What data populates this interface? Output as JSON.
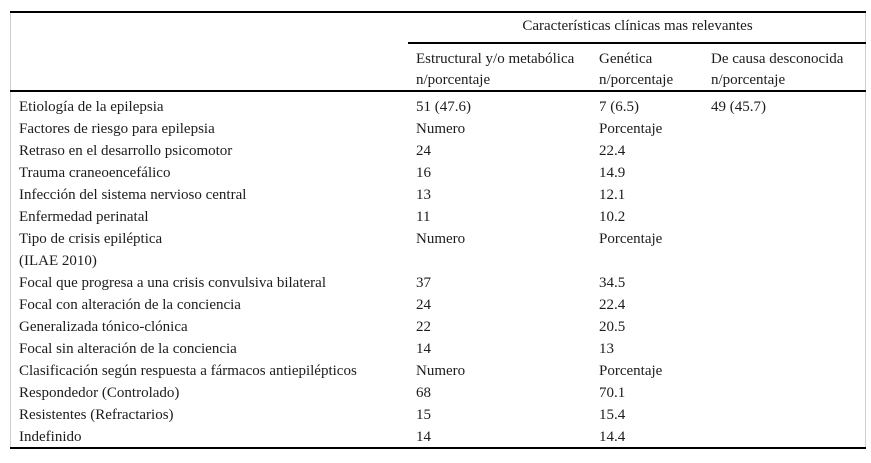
{
  "colors": {
    "rule": "#000000",
    "text": "#1c1c1c",
    "frame": "#cfcfcf",
    "background": "#ffffff"
  },
  "table": {
    "spanner_title": "Características clínicas mas relevantes",
    "columns": [
      {
        "line1": "Estructural y/o metabólica",
        "line2": "n/porcentaje"
      },
      {
        "line1": "Genética",
        "line2": "n/porcentaje"
      },
      {
        "line1": "De causa desconocida",
        "line2": "n/porcentaje"
      }
    ],
    "rows": [
      {
        "label": "Etiología de la epilepsia",
        "col1": "51 (47.6)",
        "col2": "7 (6.5)",
        "col3": "49 (45.7)"
      },
      {
        "label": "Factores de riesgo para epilepsia",
        "col1": "Numero",
        "col2": "Porcentaje",
        "col3": ""
      },
      {
        "label": "Retraso en el desarrollo psicomotor",
        "col1": "24",
        "col2": "22.4",
        "col3": ""
      },
      {
        "label": "Trauma craneoencefálico",
        "col1": "16",
        "col2": "14.9",
        "col3": ""
      },
      {
        "label": "Infección del sistema nervioso central",
        "col1": "13",
        "col2": "12.1",
        "col3": ""
      },
      {
        "label": "Enfermedad perinatal",
        "col1": "11",
        "col2": "10.2",
        "col3": ""
      },
      {
        "label": "Tipo de crisis epiléptica",
        "label2": "(ILAE 2010)",
        "col1": "Numero",
        "col2": "Porcentaje",
        "col3": ""
      },
      {
        "label": "Focal que progresa a una crisis convulsiva bilateral",
        "col1": "37",
        "col2": "34.5",
        "col3": ""
      },
      {
        "label": "Focal con alteración de la conciencia",
        "col1": "24",
        "col2": "22.4",
        "col3": ""
      },
      {
        "label": "Generalizada tónico-clónica",
        "col1": "22",
        "col2": "20.5",
        "col3": ""
      },
      {
        "label": "Focal sin alteración de la conciencia",
        "col1": "14",
        "col2": "13",
        "col3": ""
      },
      {
        "label": "Clasificación según respuesta a fármacos antiepilépticos",
        "col1": "Numero",
        "col2": "Porcentaje",
        "col3": ""
      },
      {
        "label": "Respondedor (Controlado)",
        "col1": "68",
        "col2": "70.1",
        "col3": ""
      },
      {
        "label": "Resistentes (Refractarios)",
        "col1": "15",
        "col2": "15.4",
        "col3": ""
      },
      {
        "label": "Indefinido",
        "col1": "14",
        "col2": "14.4",
        "col3": ""
      }
    ]
  }
}
